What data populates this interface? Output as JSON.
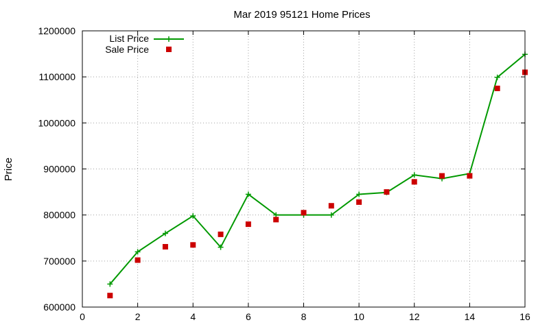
{
  "chart_data": {
    "type": "line",
    "title": "Mar 2019 95121 Home Prices",
    "xlabel": "",
    "ylabel": "Price",
    "xlim": [
      0,
      16
    ],
    "ylim": [
      600000,
      1200000
    ],
    "xticks": [
      "0",
      "2",
      "4",
      "6",
      "8",
      "10",
      "12",
      "14",
      "16"
    ],
    "yticks": [
      "600000",
      "700000",
      "800000",
      "900000",
      "1000000",
      "1100000",
      "1200000"
    ],
    "grid": true,
    "legend_position": "top-left",
    "series": [
      {
        "name": "List Price",
        "style": "line-with-plus-markers",
        "color": "#009900",
        "x": [
          1,
          2,
          3,
          4,
          5,
          6,
          7,
          8,
          9,
          10,
          11,
          12,
          13,
          14,
          15,
          16
        ],
        "y": [
          650000,
          720000,
          760000,
          798000,
          730000,
          845000,
          800000,
          800000,
          800000,
          845000,
          849000,
          887000,
          879000,
          890000,
          1099000,
          1149000
        ]
      },
      {
        "name": "Sale Price",
        "style": "square-markers",
        "color": "#cc0000",
        "x": [
          1,
          2,
          3,
          4,
          5,
          6,
          7,
          8,
          9,
          10,
          11,
          12,
          13,
          14,
          15,
          16
        ],
        "y": [
          625000,
          702000,
          731000,
          735000,
          758000,
          780000,
          790000,
          805000,
          820000,
          828000,
          850000,
          872000,
          885000,
          885000,
          1075000,
          1110000
        ]
      }
    ]
  }
}
